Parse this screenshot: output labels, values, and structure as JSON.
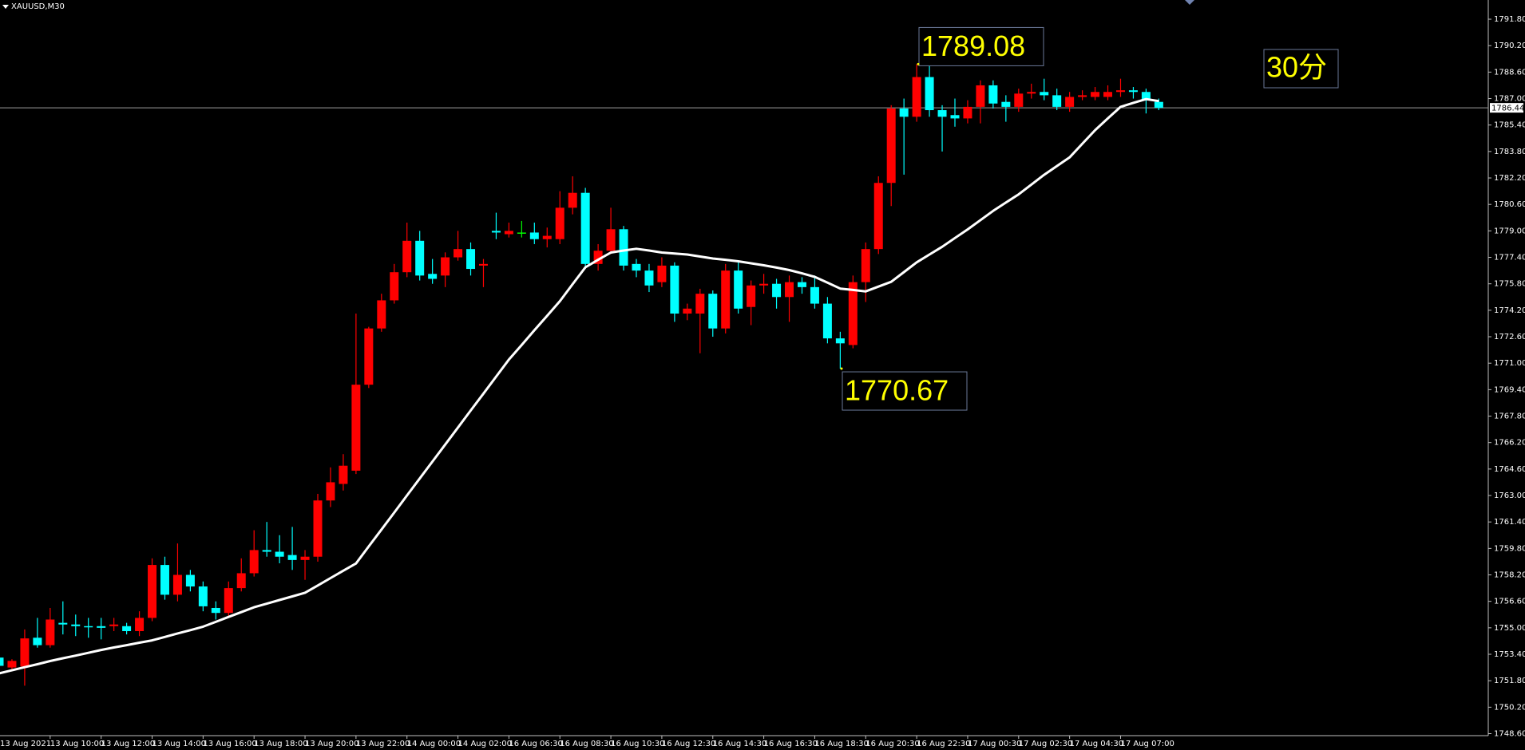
{
  "chart_data": {
    "type": "candlestick",
    "symbol": "XAUUSD,M30",
    "timeframe_note": "30分",
    "categories": [
      "13 Aug 2021",
      null,
      null,
      null,
      "13 Aug 10:00",
      null,
      null,
      null,
      "13 Aug 12:00",
      null,
      null,
      null,
      "13 Aug 14:00",
      null,
      null,
      null,
      "13 Aug 16:00",
      null,
      null,
      null,
      "13 Aug 18:00",
      null,
      null,
      null,
      "13 Aug 20:00",
      null,
      null,
      null,
      "13 Aug 22:00",
      null,
      null,
      null,
      "14 Aug 00:00",
      null,
      null,
      null,
      "14 Aug 02:00",
      null,
      null,
      null,
      "16 Aug 06:30",
      null,
      null,
      null,
      "16 Aug 08:30",
      null,
      null,
      null,
      "16 Aug 10:30",
      null,
      null,
      null,
      "16 Aug 12:30",
      null,
      null,
      null,
      "16 Aug 14:30",
      null,
      null,
      null,
      "16 Aug 16:30",
      null,
      null,
      null,
      "16 Aug 18:30",
      null,
      null,
      null,
      "16 Aug 20:30",
      null,
      null,
      null,
      "16 Aug 22:30",
      null,
      null,
      null,
      "17 Aug 00:30",
      null,
      null,
      null,
      "17 Aug 02:30",
      null,
      null,
      null,
      "17 Aug 04:30",
      null,
      null,
      null,
      "17 Aug 07:00",
      null,
      null,
      null
    ],
    "open": [
      1753.2,
      1752.6,
      1752.66,
      1754.4,
      1753.95,
      1755.3,
      1755.2,
      1755.1,
      1755.1,
      1755.1,
      1755.1,
      1754.8,
      1755.6,
      1758.8,
      1757.0,
      1758.2,
      1757.5,
      1756.2,
      1755.9,
      1757.4,
      1758.3,
      1759.7,
      1759.6,
      1759.4,
      1759.1,
      1759.3,
      1762.7,
      1763.7,
      1764.5,
      1769.7,
      1773.1,
      1774.8,
      1776.5,
      1778.4,
      1776.4,
      1776.3,
      1777.4,
      1777.9,
      1776.9,
      1779.0,
      1778.8,
      1778.9,
      1778.9,
      1778.5,
      1778.5,
      1780.4,
      1781.3,
      1777.0,
      1777.8,
      1779.1,
      1777.0,
      1776.6,
      1775.9,
      1776.9,
      1774.0,
      1774.0,
      1775.2,
      1773.1,
      1776.6,
      1774.4,
      1775.7,
      1775.8,
      1775.0,
      1775.9,
      1775.6,
      1774.6,
      1772.5,
      1772.1,
      1775.9,
      1777.9,
      1781.9,
      1786.4,
      1785.9,
      1788.3,
      1786.3,
      1786.0,
      1785.8,
      1786.5,
      1787.8,
      1786.8,
      1786.5,
      1787.3,
      1787.4,
      1787.2,
      1786.5,
      1787.1,
      1787.1,
      1787.1,
      1787.4,
      1787.5,
      1787.4,
      1786.8
    ],
    "high": [
      1753.3,
      1753.1,
      1754.9,
      1755.6,
      1756.2,
      1756.6,
      1755.8,
      1755.6,
      1755.6,
      1755.6,
      1755.3,
      1756.0,
      1759.2,
      1759.3,
      1760.1,
      1758.5,
      1757.8,
      1756.6,
      1757.8,
      1759.2,
      1760.9,
      1761.4,
      1760.6,
      1761.1,
      1759.7,
      1763.1,
      1764.7,
      1765.5,
      1774.0,
      1773.2,
      1775.2,
      1777.0,
      1779.5,
      1779.0,
      1777.3,
      1777.7,
      1779.0,
      1778.3,
      1777.3,
      1780.1,
      1779.5,
      1779.6,
      1779.5,
      1779.2,
      1781.4,
      1782.3,
      1781.6,
      1778.2,
      1780.4,
      1779.3,
      1777.3,
      1777.0,
      1777.4,
      1777.1,
      1774.6,
      1775.5,
      1775.4,
      1777.0,
      1777.2,
      1776.0,
      1776.4,
      1776.1,
      1776.3,
      1776.2,
      1776.3,
      1775.0,
      1772.9,
      1776.3,
      1778.3,
      1782.3,
      1786.6,
      1787.0,
      1789.08,
      1789.0,
      1786.6,
      1787.0,
      1786.9,
      1788.1,
      1788.1,
      1787.2,
      1787.6,
      1787.9,
      1788.2,
      1787.6,
      1787.4,
      1787.5,
      1787.7,
      1787.8,
      1788.2,
      1787.7,
      1787.6,
      1787.0
    ],
    "low": [
      1752.4,
      1752.4,
      1751.5,
      1753.8,
      1753.8,
      1754.6,
      1754.5,
      1754.4,
      1754.3,
      1754.8,
      1754.6,
      1754.5,
      1755.4,
      1756.7,
      1756.6,
      1757.2,
      1756.0,
      1755.5,
      1755.7,
      1757.2,
      1758.1,
      1759.3,
      1758.9,
      1758.5,
      1757.9,
      1759.0,
      1762.3,
      1763.3,
      1764.3,
      1769.5,
      1772.9,
      1774.6,
      1776.2,
      1776.0,
      1775.8,
      1775.6,
      1777.2,
      1776.3,
      1775.6,
      1778.5,
      1778.6,
      1778.6,
      1778.2,
      1778.0,
      1778.2,
      1780.0,
      1776.7,
      1776.6,
      1777.6,
      1776.6,
      1776.2,
      1775.3,
      1775.6,
      1773.5,
      1773.6,
      1771.6,
      1772.6,
      1772.8,
      1774.0,
      1773.3,
      1775.2,
      1774.3,
      1773.5,
      1775.2,
      1774.3,
      1772.2,
      1770.67,
      1771.9,
      1774.7,
      1777.6,
      1780.5,
      1782.4,
      1785.6,
      1785.9,
      1783.8,
      1785.3,
      1785.5,
      1785.5,
      1786.4,
      1785.6,
      1786.2,
      1787.0,
      1786.9,
      1786.3,
      1786.2,
      1786.9,
      1786.9,
      1786.9,
      1787.1,
      1787.0,
      1786.1,
      1786.3
    ],
    "close": [
      1752.7,
      1753.0,
      1754.36,
      1753.95,
      1755.5,
      1755.2,
      1755.1,
      1755.05,
      1755.0,
      1755.2,
      1754.8,
      1755.6,
      1758.8,
      1757.0,
      1758.2,
      1757.5,
      1756.3,
      1755.9,
      1757.4,
      1758.3,
      1759.7,
      1759.6,
      1759.3,
      1759.1,
      1759.3,
      1762.7,
      1763.8,
      1764.8,
      1769.7,
      1773.1,
      1774.8,
      1776.5,
      1778.4,
      1776.3,
      1776.1,
      1777.4,
      1777.9,
      1776.7,
      1777.0,
      1778.9,
      1779.0,
      1778.9,
      1778.5,
      1778.7,
      1780.4,
      1781.3,
      1777.0,
      1777.8,
      1779.1,
      1776.9,
      1776.6,
      1775.7,
      1776.9,
      1774.0,
      1774.3,
      1775.2,
      1773.1,
      1776.6,
      1774.3,
      1775.7,
      1775.8,
      1775.0,
      1775.9,
      1775.6,
      1774.6,
      1772.5,
      1772.2,
      1775.9,
      1777.9,
      1781.9,
      1786.4,
      1785.9,
      1788.3,
      1786.3,
      1785.9,
      1785.8,
      1786.5,
      1787.8,
      1786.7,
      1786.5,
      1787.3,
      1787.4,
      1787.2,
      1786.5,
      1787.1,
      1787.2,
      1787.4,
      1787.4,
      1787.5,
      1787.4,
      1786.9,
      1786.44
    ],
    "up_color": "#ff0000",
    "down_color": "#00ffff",
    "doji_color": "#00ff00",
    "moving_average": {
      "color": "#ffffff",
      "values": [
        1752.25,
        1752.43,
        1752.62,
        1752.8,
        1752.99,
        1753.16,
        1753.32,
        1753.49,
        1753.66,
        1753.81,
        1753.95,
        1754.1,
        1754.24,
        1754.45,
        1754.66,
        1754.86,
        1755.07,
        1755.36,
        1755.66,
        1755.95,
        1756.24,
        1756.46,
        1756.68,
        1756.9,
        1757.12,
        1757.56,
        1758.01,
        1758.45,
        1758.89,
        1759.92,
        1760.94,
        1761.97,
        1763.0,
        1764.03,
        1765.05,
        1766.08,
        1767.11,
        1768.14,
        1769.16,
        1770.19,
        1771.22,
        1772.1,
        1772.99,
        1773.87,
        1774.75,
        1775.78,
        1776.8,
        1777.25,
        1777.69,
        1777.81,
        1777.92,
        1777.81,
        1777.69,
        1777.63,
        1777.57,
        1777.45,
        1777.33,
        1777.25,
        1777.16,
        1777.04,
        1776.92,
        1776.78,
        1776.63,
        1776.43,
        1776.22,
        1775.87,
        1775.51,
        1775.43,
        1775.34,
        1775.63,
        1775.92,
        1776.51,
        1777.1,
        1777.57,
        1778.04,
        1778.57,
        1779.09,
        1779.65,
        1780.21,
        1780.71,
        1781.21,
        1781.8,
        1782.39,
        1782.92,
        1783.44,
        1784.27,
        1785.09,
        1785.8,
        1786.5,
        1786.74,
        1786.97,
        1786.85
      ]
    },
    "last_price": 1786.44,
    "annotations": [
      1789.08,
      1770.67
    ],
    "ylim": [
      1748.48,
      1792.96
    ],
    "yticks": [
      {
        "value": 1748.6,
        "label": "1748.60"
      },
      {
        "value": 1750.2,
        "label": "1750.20"
      },
      {
        "value": 1751.8,
        "label": "1751.80"
      },
      {
        "value": 1753.4,
        "label": "1753.40"
      },
      {
        "value": 1755,
        "label": "1755.00"
      },
      {
        "value": 1756.6,
        "label": "1756.60"
      },
      {
        "value": 1758.2,
        "label": "1758.20"
      },
      {
        "value": 1759.8,
        "label": "1759.80"
      },
      {
        "value": 1761.4,
        "label": "1761.40"
      },
      {
        "value": 1763,
        "label": "1763.00"
      },
      {
        "value": 1764.6,
        "label": "1764.60"
      },
      {
        "value": 1766.2,
        "label": "1766.20"
      },
      {
        "value": 1767.8,
        "label": "1767.80"
      },
      {
        "value": 1769.4,
        "label": "1769.40"
      },
      {
        "value": 1771,
        "label": "1771.00"
      },
      {
        "value": 1772.6,
        "label": "1772.60"
      },
      {
        "value": 1774.2,
        "label": "1774.20"
      },
      {
        "value": 1775.8,
        "label": "1775.80"
      },
      {
        "value": 1777.4,
        "label": "1777.40"
      },
      {
        "value": 1779,
        "label": "1779.00"
      },
      {
        "value": 1780.6,
        "label": "1780.60"
      },
      {
        "value": 1782.2,
        "label": "1782.20"
      },
      {
        "value": 1783.8,
        "label": "1783.80"
      },
      {
        "value": 1785.4,
        "label": "1785.40"
      },
      {
        "value": 1787,
        "label": "1787.00"
      },
      {
        "value": 1788.6,
        "label": "1788.60"
      },
      {
        "value": 1790.2,
        "label": "1790.20"
      },
      {
        "value": 1791.8,
        "label": "1791.80"
      }
    ]
  }
}
